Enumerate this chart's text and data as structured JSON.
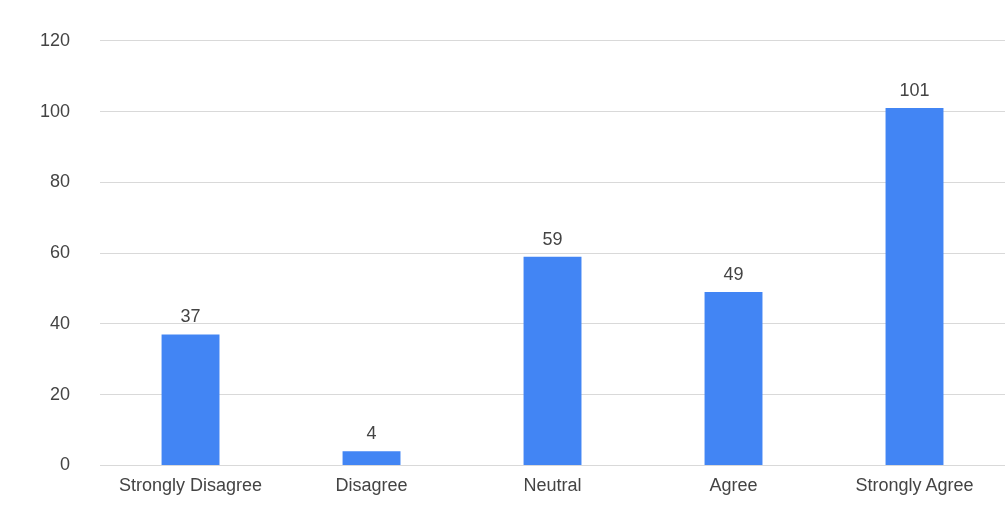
{
  "chart_data": {
    "type": "bar",
    "categories": [
      "Strongly Disagree",
      "Disagree",
      "Neutral",
      "Agree",
      "Strongly Agree"
    ],
    "values": [
      37,
      4,
      59,
      49,
      101
    ],
    "color": "#4285f4",
    "ylim": [
      0,
      120
    ],
    "yticks": [
      0,
      20,
      40,
      60,
      80,
      100,
      120
    ],
    "grid": "y",
    "data_labels": true,
    "legend": false
  }
}
